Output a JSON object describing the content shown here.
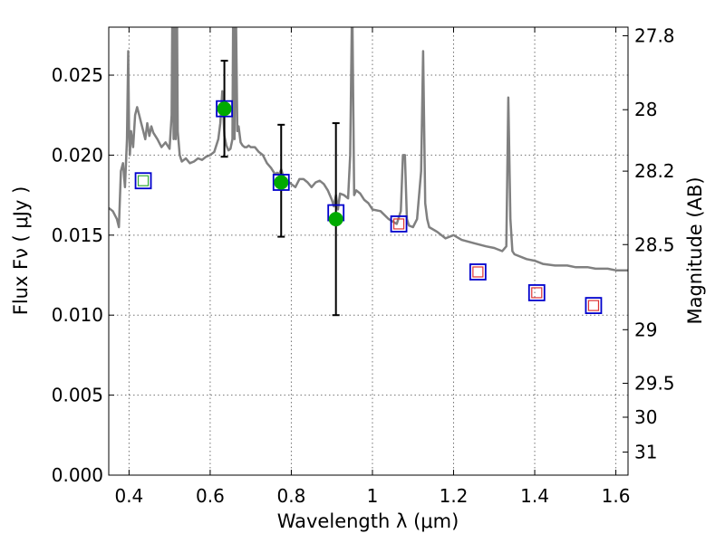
{
  "chart_data": {
    "type": "scatter",
    "title": "",
    "xlabel": "Wavelength  λ (μm)",
    "ylabel": "Flux  Fν  ( μJy )",
    "ylabel_right": "Magnitude (AB)",
    "xlim": [
      0.35,
      1.63
    ],
    "ylim": [
      0.0,
      0.028
    ],
    "grid": true,
    "x_ticks": [
      0.4,
      0.6,
      0.8,
      1.0,
      1.2,
      1.4,
      1.6
    ],
    "x_tick_labels": [
      "0.4",
      "0.6",
      "0.8",
      "1",
      "1.2",
      "1.4",
      "1.6"
    ],
    "y_ticks": [
      0.0,
      0.005,
      0.01,
      0.015,
      0.02,
      0.025
    ],
    "y_tick_labels": [
      "0.000",
      "0.005",
      "0.010",
      "0.015",
      "0.020",
      "0.025"
    ],
    "right_ticks": [
      {
        "label": "27.8",
        "flux": 0.02746
      },
      {
        "label": "28",
        "flux": 0.02284
      },
      {
        "label": "28.2",
        "flux": 0.019
      },
      {
        "label": "28.5",
        "flux": 0.01441
      },
      {
        "label": "29",
        "flux": 0.00909
      },
      {
        "label": "29.5",
        "flux": 0.00574
      },
      {
        "label": "30",
        "flux": 0.00362
      },
      {
        "label": "31",
        "flux": 0.00144
      }
    ],
    "series": [
      {
        "kind": "spectrum_line",
        "color": "#808080",
        "x": [
          0.35,
          0.36,
          0.37,
          0.375,
          0.38,
          0.385,
          0.39,
          0.395,
          0.398,
          0.4,
          0.402,
          0.405,
          0.41,
          0.415,
          0.42,
          0.425,
          0.43,
          0.435,
          0.44,
          0.445,
          0.45,
          0.455,
          0.46,
          0.47,
          0.48,
          0.49,
          0.5,
          0.505,
          0.507,
          0.51,
          0.512,
          0.515,
          0.518,
          0.52,
          0.525,
          0.53,
          0.54,
          0.55,
          0.56,
          0.57,
          0.58,
          0.59,
          0.6,
          0.61,
          0.62,
          0.625,
          0.63,
          0.635,
          0.64,
          0.645,
          0.65,
          0.655,
          0.657,
          0.66,
          0.663,
          0.667,
          0.67,
          0.675,
          0.68,
          0.685,
          0.69,
          0.695,
          0.7,
          0.71,
          0.72,
          0.73,
          0.74,
          0.75,
          0.76,
          0.765,
          0.77,
          0.775,
          0.78,
          0.79,
          0.8,
          0.81,
          0.82,
          0.83,
          0.84,
          0.85,
          0.86,
          0.87,
          0.88,
          0.89,
          0.9,
          0.905,
          0.91,
          0.915,
          0.92,
          0.93,
          0.94,
          0.945,
          0.95,
          0.955,
          0.96,
          0.97,
          0.98,
          0.99,
          1.0,
          1.02,
          1.04,
          1.06,
          1.07,
          1.075,
          1.08,
          1.085,
          1.09,
          1.1,
          1.11,
          1.12,
          1.125,
          1.13,
          1.135,
          1.14,
          1.16,
          1.18,
          1.2,
          1.22,
          1.25,
          1.28,
          1.3,
          1.32,
          1.33,
          1.335,
          1.34,
          1.345,
          1.35,
          1.38,
          1.4,
          1.42,
          1.45,
          1.48,
          1.5,
          1.53,
          1.55,
          1.58,
          1.6,
          1.62,
          1.63
        ],
        "y": [
          0.0167,
          0.0165,
          0.016,
          0.0155,
          0.019,
          0.0195,
          0.018,
          0.021,
          0.0265,
          0.0215,
          0.02,
          0.0215,
          0.0205,
          0.0225,
          0.023,
          0.0225,
          0.022,
          0.0215,
          0.021,
          0.022,
          0.0212,
          0.0218,
          0.0214,
          0.021,
          0.0205,
          0.0208,
          0.0204,
          0.0225,
          0.03,
          0.021,
          0.03,
          0.021,
          0.03,
          0.0215,
          0.02,
          0.0196,
          0.0198,
          0.0195,
          0.0196,
          0.0198,
          0.0197,
          0.0199,
          0.02,
          0.0202,
          0.021,
          0.022,
          0.024,
          0.0212,
          0.0206,
          0.0203,
          0.0204,
          0.021,
          0.03,
          0.021,
          0.03,
          0.0215,
          0.0218,
          0.0208,
          0.0206,
          0.0205,
          0.0205,
          0.0206,
          0.0205,
          0.0205,
          0.0202,
          0.02,
          0.0195,
          0.0192,
          0.0188,
          0.0189,
          0.0188,
          0.0191,
          0.0187,
          0.0184,
          0.0182,
          0.018,
          0.0185,
          0.0185,
          0.0183,
          0.018,
          0.0183,
          0.0184,
          0.0182,
          0.0178,
          0.0172,
          0.0168,
          0.0175,
          0.0166,
          0.0176,
          0.0175,
          0.0173,
          0.02,
          0.03,
          0.0175,
          0.0178,
          0.0176,
          0.0172,
          0.017,
          0.0166,
          0.0165,
          0.016,
          0.0157,
          0.0165,
          0.02,
          0.02,
          0.016,
          0.0156,
          0.0155,
          0.016,
          0.019,
          0.0265,
          0.017,
          0.016,
          0.0155,
          0.0152,
          0.0148,
          0.015,
          0.0147,
          0.0145,
          0.0143,
          0.0142,
          0.014,
          0.0143,
          0.0236,
          0.016,
          0.014,
          0.0138,
          0.0135,
          0.0134,
          0.0132,
          0.0131,
          0.0131,
          0.013,
          0.013,
          0.0129,
          0.0129,
          0.0128,
          0.0128,
          0.0128
        ]
      },
      {
        "kind": "blue_open_square",
        "color": "#0000cc",
        "x": [
          0.435,
          0.635,
          0.775,
          0.91,
          1.065,
          1.26,
          1.405,
          1.545
        ],
        "y": [
          0.0184,
          0.0229,
          0.0183,
          0.0164,
          0.0157,
          0.0127,
          0.0114,
          0.0106
        ]
      },
      {
        "kind": "red_small_square",
        "color": "#dd3333",
        "x": [
          1.065,
          1.26,
          1.405,
          1.545
        ],
        "y": [
          0.0157,
          0.0127,
          0.0114,
          0.0106
        ]
      },
      {
        "kind": "green_small_square",
        "color": "#33aa33",
        "x": [
          0.435
        ],
        "y": [
          0.0184
        ]
      },
      {
        "kind": "green_filled_circle_with_error",
        "color": "#00aa00",
        "x": [
          0.635,
          0.775,
          0.91
        ],
        "y": [
          0.0229,
          0.0183,
          0.016
        ],
        "err_low": [
          0.0199,
          0.0149,
          0.01
        ],
        "err_high": [
          0.0259,
          0.0219,
          0.022
        ]
      }
    ]
  }
}
